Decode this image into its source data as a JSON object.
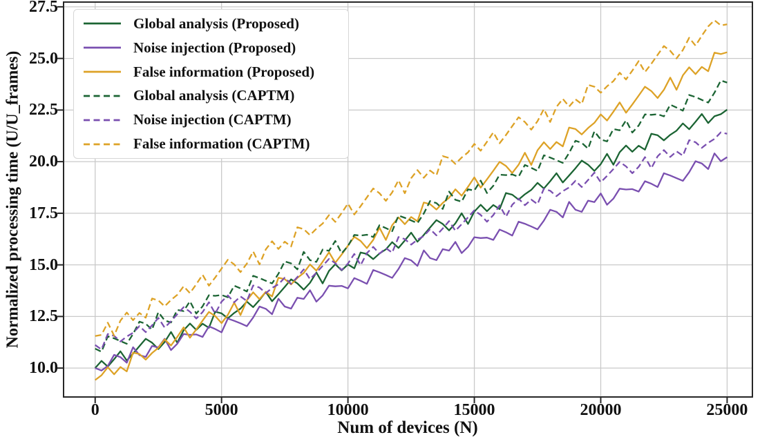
{
  "chart_data": {
    "type": "line",
    "title": "",
    "xlabel": "Num of devices (N)",
    "ylabel": "Normalized processing time (U/U_frames)",
    "xlim": [
      -1250,
      26000
    ],
    "ylim": [
      8.6,
      27.73
    ],
    "grid": true,
    "legend_position": "upper left",
    "x_ticks": [
      0,
      5000,
      10000,
      15000,
      20000,
      25000
    ],
    "x_tick_labels": [
      "0",
      "5000",
      "10000",
      "15000",
      "20000",
      "25000"
    ],
    "y_ticks": [
      10.0,
      12.5,
      15.0,
      17.5,
      20.0,
      22.5,
      25.0,
      27.5
    ],
    "y_tick_labels": [
      "10.0",
      "12.5",
      "15.0",
      "17.5",
      "20.0",
      "22.5",
      "25.0",
      "27.5"
    ],
    "colors": {
      "green": "#1b6433",
      "purple": "#7a4fb0",
      "gold": "#dda226",
      "grid": "#c9c9c9",
      "frame": "#262626",
      "text": "#111111"
    },
    "x_start": 0,
    "x_step": 250,
    "series": [
      {
        "label": "Global analysis (Proposed)",
        "color": "#1b6433",
        "dashed": false,
        "values": [
          10.0,
          10.35,
          10.07,
          10.43,
          10.81,
          10.37,
          10.7,
          11.06,
          11.42,
          11.23,
          10.92,
          11.26,
          11.75,
          11.23,
          11.83,
          12.16,
          11.85,
          12.15,
          11.95,
          12.73,
          12.65,
          12.41,
          12.67,
          12.88,
          13.22,
          12.95,
          13.3,
          13.69,
          13.24,
          13.58,
          13.93,
          14.3,
          14.1,
          13.8,
          14.13,
          14.63,
          14.1,
          14.71,
          15.03,
          14.73,
          15.02,
          14.83,
          15.6,
          15.53,
          15.28,
          15.55,
          15.75,
          16.1,
          15.82,
          16.18,
          16.56,
          16.12,
          16.45,
          16.81,
          17.17,
          16.98,
          16.67,
          17.01,
          17.5,
          16.98,
          17.58,
          17.91,
          17.6,
          17.9,
          17.7,
          18.48,
          18.4,
          18.16,
          18.42,
          18.63,
          18.97,
          18.7,
          19.05,
          19.44,
          18.99,
          19.33,
          19.68,
          20.05,
          19.85,
          19.55,
          19.88,
          20.38,
          19.85,
          20.46,
          20.78,
          20.48,
          20.77,
          20.58,
          21.35,
          21.28,
          21.03,
          21.3,
          21.5,
          21.85,
          21.57,
          21.93,
          22.31,
          21.87,
          22.2,
          22.3,
          22.52
        ]
      },
      {
        "label": "Noise injection (Proposed)",
        "color": "#7a4fb0",
        "dashed": false,
        "values": [
          10.0,
          9.88,
          10.1,
          10.64,
          10.53,
          10.26,
          11.01,
          10.63,
          10.54,
          11.07,
          11.0,
          11.42,
          10.87,
          11.18,
          11.65,
          11.61,
          11.63,
          11.51,
          12.02,
          11.89,
          11.73,
          12.4,
          12.29,
          12.17,
          12.03,
          12.45,
          12.98,
          12.87,
          12.61,
          13.36,
          12.98,
          12.88,
          13.41,
          13.35,
          13.77,
          13.22,
          13.52,
          13.99,
          13.96,
          13.98,
          13.86,
          14.36,
          14.23,
          14.08,
          14.75,
          14.64,
          14.51,
          14.37,
          14.8,
          15.33,
          15.22,
          14.95,
          15.7,
          15.33,
          15.23,
          15.76,
          15.69,
          16.11,
          15.57,
          15.87,
          16.34,
          16.3,
          16.32,
          16.21,
          16.71,
          16.58,
          16.42,
          17.09,
          16.99,
          16.86,
          16.72,
          17.14,
          17.67,
          17.57,
          17.3,
          18.05,
          17.67,
          17.57,
          18.11,
          18.04,
          18.46,
          17.91,
          18.21,
          18.69,
          18.65,
          18.67,
          18.55,
          19.05,
          18.93,
          18.77,
          19.44,
          19.33,
          19.2,
          19.07,
          19.49,
          20.02,
          19.91,
          19.64,
          20.4,
          20.02,
          20.22
        ]
      },
      {
        "label": "False information (Proposed)",
        "color": "#dda226",
        "dashed": false,
        "values": [
          9.42,
          9.65,
          10.04,
          9.7,
          10.05,
          9.84,
          10.75,
          10.68,
          10.41,
          10.73,
          10.98,
          11.39,
          11.09,
          11.51,
          11.97,
          11.47,
          11.87,
          12.3,
          12.72,
          12.52,
          12.18,
          12.58,
          13.17,
          12.57,
          13.28,
          13.67,
          13.34,
          13.69,
          13.47,
          14.38,
          14.31,
          14.05,
          14.37,
          14.61,
          15.02,
          14.72,
          15.15,
          15.61,
          15.1,
          15.5,
          15.93,
          16.36,
          16.16,
          15.81,
          16.21,
          16.8,
          16.21,
          16.92,
          17.3,
          16.97,
          17.32,
          17.11,
          18.02,
          17.94,
          17.68,
          18.0,
          18.25,
          18.66,
          18.35,
          18.78,
          19.24,
          18.74,
          19.14,
          19.56,
          19.99,
          19.79,
          19.45,
          19.85,
          20.43,
          19.84,
          20.55,
          20.94,
          20.61,
          20.95,
          20.74,
          21.65,
          21.58,
          21.32,
          21.63,
          21.88,
          22.29,
          21.99,
          22.42,
          22.87,
          22.37,
          22.77,
          23.2,
          23.63,
          23.42,
          23.08,
          23.48,
          24.07,
          23.48,
          24.18,
          24.57,
          24.24,
          24.59,
          24.38,
          25.28,
          25.21,
          25.3
        ]
      },
      {
        "label": "Global analysis (CAPTM)",
        "color": "#1b6433",
        "dashed": true,
        "values": [
          10.94,
          10.79,
          11.54,
          11.44,
          11.31,
          11.18,
          11.65,
          12.25,
          12.15,
          11.86,
          12.71,
          12.31,
          12.21,
          12.82,
          12.76,
          13.24,
          12.64,
          12.99,
          13.53,
          13.5,
          13.54,
          13.43,
          13.99,
          13.86,
          13.71,
          14.47,
          14.36,
          14.23,
          14.1,
          14.57,
          15.17,
          15.07,
          14.78,
          15.63,
          15.23,
          15.14,
          15.74,
          15.68,
          16.16,
          15.56,
          15.91,
          16.45,
          16.42,
          16.46,
          16.35,
          16.92,
          16.78,
          16.63,
          17.39,
          17.28,
          17.15,
          17.02,
          17.49,
          18.09,
          17.99,
          17.71,
          18.55,
          18.15,
          18.06,
          18.66,
          18.6,
          19.08,
          18.48,
          18.83,
          19.37,
          19.35,
          19.38,
          19.27,
          19.84,
          19.7,
          19.55,
          20.31,
          20.2,
          20.07,
          19.94,
          20.42,
          21.01,
          20.91,
          20.63,
          21.47,
          21.07,
          20.98,
          21.58,
          21.52,
          22.0,
          21.41,
          21.75,
          22.29,
          22.27,
          22.3,
          22.19,
          22.76,
          22.62,
          22.47,
          23.23,
          23.13,
          22.99,
          22.86,
          23.34,
          23.93,
          23.83
        ]
      },
      {
        "label": "Noise injection (CAPTM)",
        "color": "#7a4fb0",
        "dashed": true,
        "values": [
          11.12,
          10.9,
          11.65,
          11.56,
          11.29,
          11.53,
          11.71,
          12.03,
          11.74,
          12.07,
          12.43,
          11.96,
          12.27,
          12.61,
          12.95,
          12.73,
          12.4,
          12.71,
          13.19,
          12.64,
          13.22,
          13.52,
          13.19,
          13.47,
          13.25,
          14.0,
          13.9,
          13.63,
          13.88,
          14.06,
          14.38,
          14.08,
          14.41,
          14.78,
          14.31,
          14.62,
          14.95,
          15.29,
          15.08,
          14.75,
          15.06,
          15.53,
          14.98,
          15.57,
          15.87,
          15.54,
          15.81,
          15.59,
          16.35,
          16.25,
          15.98,
          16.22,
          16.4,
          16.73,
          16.43,
          16.76,
          17.12,
          16.65,
          16.97,
          17.3,
          17.64,
          17.42,
          17.09,
          17.41,
          17.88,
          17.33,
          17.91,
          18.21,
          17.89,
          18.16,
          17.94,
          18.69,
          18.59,
          18.33,
          18.57,
          18.75,
          19.07,
          18.77,
          19.11,
          19.47,
          19.0,
          19.31,
          19.64,
          19.99,
          19.77,
          19.44,
          19.75,
          20.22,
          19.68,
          20.26,
          20.56,
          20.23,
          20.5,
          20.29,
          21.04,
          20.94,
          20.67,
          20.91,
          21.1,
          21.42,
          21.35
        ]
      },
      {
        "label": "False information (CAPTM)",
        "color": "#dda226",
        "dashed": true,
        "values": [
          11.55,
          11.61,
          12.2,
          11.57,
          12.3,
          12.69,
          12.32,
          12.67,
          12.44,
          13.37,
          13.28,
          12.99,
          13.3,
          13.55,
          13.96,
          13.63,
          14.06,
          14.52,
          13.99,
          14.39,
          14.82,
          15.25,
          15.02,
          14.65,
          15.06,
          15.65,
          15.02,
          15.75,
          16.14,
          15.77,
          16.12,
          15.89,
          16.82,
          16.73,
          16.44,
          16.75,
          17.0,
          17.41,
          17.08,
          17.51,
          17.97,
          17.44,
          17.84,
          18.27,
          18.7,
          18.47,
          18.1,
          18.51,
          19.1,
          18.47,
          19.2,
          19.59,
          19.22,
          19.57,
          19.34,
          20.27,
          20.18,
          19.89,
          20.2,
          20.45,
          20.86,
          20.53,
          20.96,
          21.42,
          20.89,
          21.29,
          21.72,
          22.15,
          21.92,
          21.55,
          21.96,
          22.55,
          21.92,
          22.65,
          23.04,
          22.67,
          23.02,
          22.79,
          23.72,
          23.63,
          23.34,
          23.65,
          23.9,
          24.31,
          23.98,
          24.41,
          24.87,
          24.34,
          24.74,
          25.17,
          25.6,
          25.37,
          25.0,
          25.41,
          26.0,
          25.62,
          26.1,
          26.55,
          26.85,
          26.6,
          26.65
        ]
      }
    ]
  }
}
